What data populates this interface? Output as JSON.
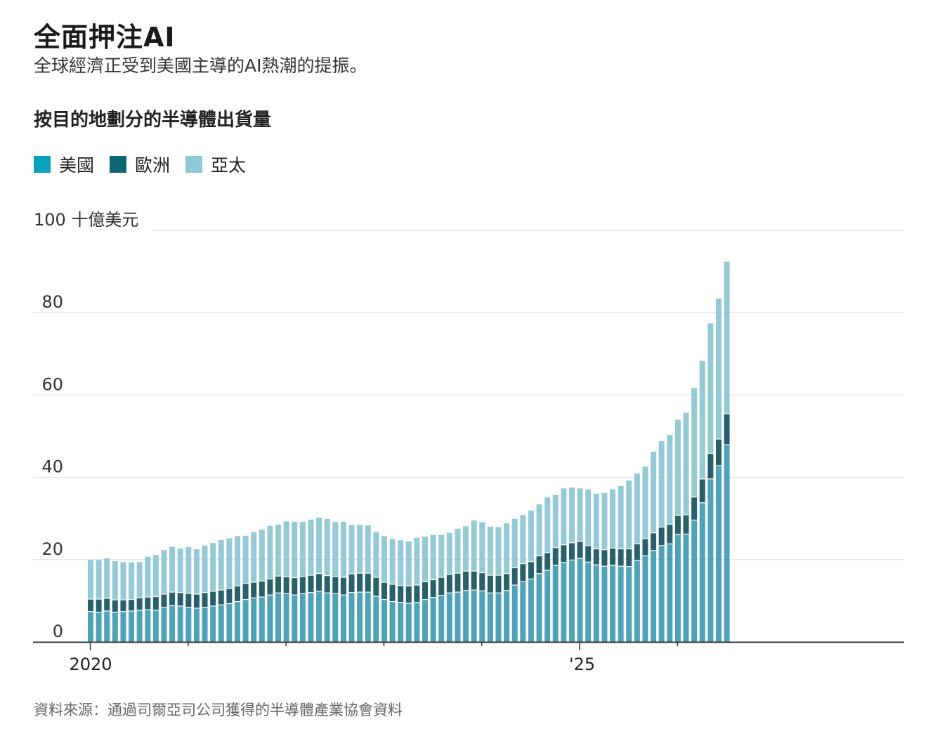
{
  "title": "全面押注AI",
  "subtitle": "全球經濟正受到美國主導的AI熱潮的提振。",
  "chart_title": "按目的地劃分的半導體出貨量",
  "source": "資料來源：通過司爾亞司公司獲得的半導體產業協會資料",
  "colors": {
    "us": "#4fa3b8",
    "europe": "#28606b",
    "asia": "#94c9d6",
    "grid": "#dcdcdc",
    "axis": "#333333"
  },
  "chart_data": {
    "type": "bar",
    "stacked": true,
    "unit_label": "100 十億美元",
    "y_ticks": [
      "0",
      "20",
      "40",
      "60",
      "80"
    ],
    "ylim": [
      0,
      100
    ],
    "x_tick_labels": [
      {
        "index": 0,
        "label": "2020"
      },
      {
        "index": 60,
        "label": "'25"
      }
    ],
    "legend": [
      "美國",
      "歐洲",
      "亞太"
    ],
    "series": [
      {
        "name": "美國",
        "values": [
          7.3,
          7.1,
          7.4,
          7.1,
          7.3,
          7.4,
          7.6,
          7.7,
          7.6,
          8.3,
          8.7,
          8.6,
          8.3,
          8.1,
          8.3,
          8.6,
          8.9,
          9.2,
          9.7,
          10.2,
          10.6,
          10.8,
          11.3,
          11.8,
          11.6,
          11.3,
          11.6,
          11.9,
          12.2,
          11.8,
          11.6,
          11.3,
          11.9,
          12.0,
          12.0,
          11.0,
          10.2,
          9.7,
          9.5,
          9.3,
          9.5,
          10.2,
          10.7,
          11.2,
          11.8,
          12.0,
          12.4,
          12.5,
          12.3,
          11.8,
          11.8,
          12.4,
          13.7,
          14.5,
          15.2,
          16.5,
          17.3,
          18.5,
          19.2,
          19.8,
          20.2,
          19.3,
          18.6,
          18.3,
          18.5,
          18.3,
          18.2,
          19.7,
          20.8,
          22.1,
          23.3,
          23.7,
          26.0,
          26.1,
          29.5,
          33.7,
          39.5,
          42.7,
          47.8
        ]
      },
      {
        "name": "歐洲",
        "values": [
          3.0,
          3.2,
          3.1,
          3.0,
          2.8,
          2.8,
          3.0,
          3.1,
          3.3,
          3.2,
          3.3,
          3.3,
          3.4,
          3.4,
          3.6,
          3.6,
          3.6,
          3.7,
          3.8,
          3.9,
          3.8,
          3.9,
          3.9,
          4.1,
          4.1,
          4.2,
          4.2,
          4.2,
          4.3,
          4.2,
          4.2,
          4.3,
          4.5,
          4.6,
          4.6,
          4.6,
          4.2,
          4.2,
          4.1,
          4.2,
          4.2,
          4.3,
          4.3,
          4.4,
          4.5,
          4.6,
          4.7,
          4.6,
          4.4,
          4.3,
          4.3,
          4.1,
          4.2,
          4.4,
          4.2,
          4.3,
          4.3,
          4.3,
          4.3,
          4.2,
          4.1,
          4.0,
          3.9,
          4.0,
          4.2,
          4.2,
          4.3,
          4.0,
          4.2,
          4.3,
          4.5,
          4.8,
          4.6,
          4.7,
          5.6,
          5.8,
          6.2,
          6.5,
          7.5
        ]
      },
      {
        "name": "亞太",
        "values": [
          9.6,
          9.6,
          9.8,
          9.5,
          9.3,
          9.1,
          8.8,
          9.9,
          10.2,
          10.8,
          11.1,
          10.8,
          11.3,
          11.0,
          11.5,
          11.8,
          12.3,
          12.3,
          12.2,
          11.7,
          12.3,
          12.6,
          13.0,
          12.6,
          13.6,
          13.7,
          13.4,
          13.6,
          13.7,
          13.9,
          13.3,
          13.6,
          12.0,
          11.8,
          11.7,
          11.1,
          11.3,
          11.1,
          11.1,
          10.9,
          11.6,
          11.1,
          11.0,
          10.4,
          10.2,
          10.9,
          11.0,
          12.4,
          12.4,
          11.9,
          11.8,
          12.3,
          12.0,
          11.9,
          12.5,
          12.6,
          13.5,
          12.9,
          13.8,
          13.5,
          13.0,
          13.7,
          13.5,
          13.9,
          14.4,
          15.4,
          16.7,
          17.2,
          17.6,
          19.8,
          21.0,
          21.8,
          23.4,
          24.9,
          26.6,
          28.8,
          31.7,
          34.2,
          37.1
        ]
      }
    ]
  }
}
